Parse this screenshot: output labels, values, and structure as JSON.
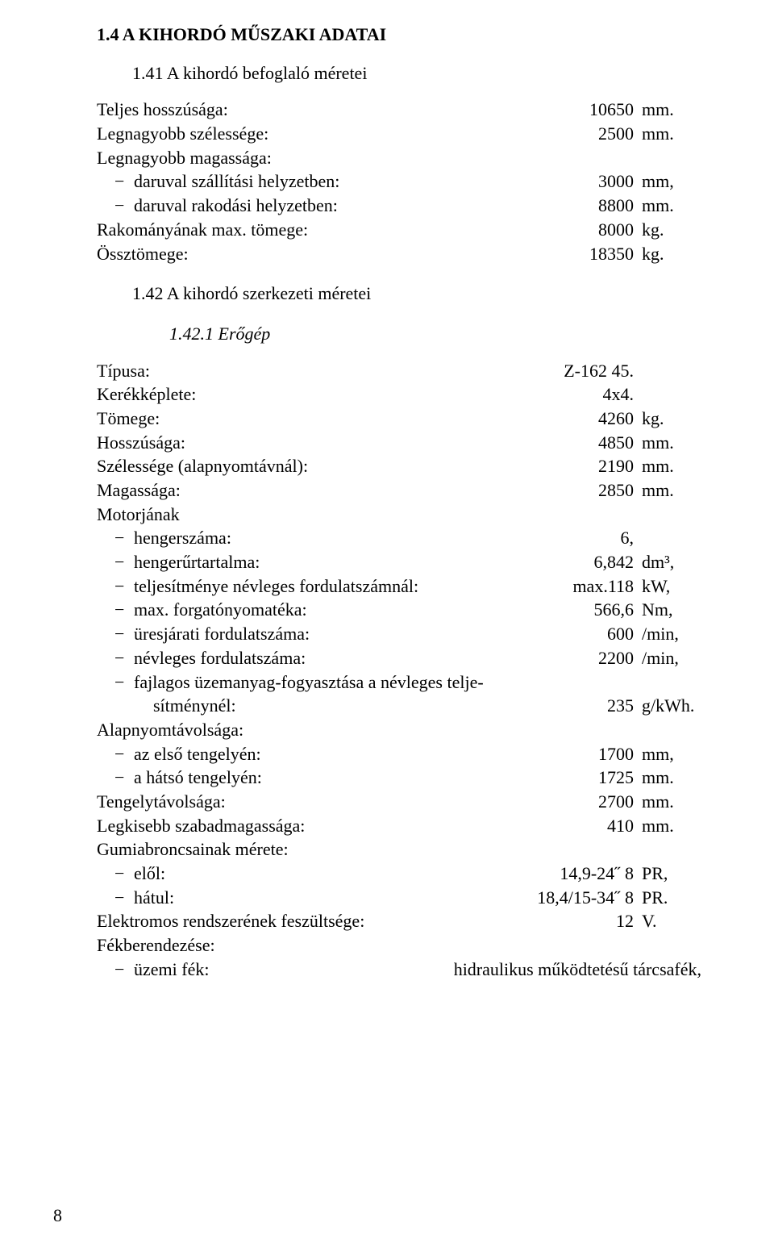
{
  "headings": {
    "h14": "1.4 A KIHORDÓ MŰSZAKI ADATAI",
    "h141": "1.41 A kihordó befoglaló méretei",
    "h142": "1.42 A kihordó szerkezeti méretei",
    "h1421": "1.42.1 Erőgép"
  },
  "s141": {
    "r1": {
      "label": "Teljes hosszúsága:",
      "val": "10650",
      "unit": "mm."
    },
    "r2": {
      "label": "Legnagyobb szélessége:",
      "val": "2500",
      "unit": "mm."
    },
    "r3": {
      "label": "Legnagyobb magassága:"
    },
    "r3a": {
      "label": "daruval szállítási helyzetben:",
      "val": "3000",
      "unit": "mm,"
    },
    "r3b": {
      "label": "daruval rakodási helyzetben:",
      "val": "8800",
      "unit": "mm."
    },
    "r4": {
      "label": "Rakományának max. tömege:",
      "val": "8000",
      "unit": "kg."
    },
    "r5": {
      "label": "Össztömege:",
      "val": "18350",
      "unit": "kg."
    }
  },
  "s1421": {
    "r1": {
      "label": "Típusa:",
      "val": "Z-162 45."
    },
    "r2": {
      "label": "Kerékképlete:",
      "val": "4x4."
    },
    "r3": {
      "label": "Tömege:",
      "val": "4260",
      "unit": "kg."
    },
    "r4": {
      "label": "Hosszúsága:",
      "val": "4850",
      "unit": "mm."
    },
    "r5": {
      "label": "Szélessége (alapnyomtávnál):",
      "val": "2190",
      "unit": "mm."
    },
    "r6": {
      "label": "Magassága:",
      "val": "2850",
      "unit": "mm."
    },
    "r7": {
      "label": "Motorjának"
    },
    "r7a": {
      "label": "hengerszáma:",
      "val": "6,"
    },
    "r7b": {
      "label": "hengerűrtartalma:",
      "val": "6,842",
      "unit": "dm³,"
    },
    "r7c": {
      "label": "teljesítménye névleges fordulatszámnál:",
      "val": "max.118",
      "unit": "kW,"
    },
    "r7d": {
      "label": "max. forgatónyomatéka:",
      "val": "566,6",
      "unit": "Nm,"
    },
    "r7e": {
      "label": "üresjárati fordulatszáma:",
      "val": "600",
      "unit": "/min,"
    },
    "r7f": {
      "label": "névleges fordulatszáma:",
      "val": "2200",
      "unit": "/min,"
    },
    "r7g1": {
      "label": "fajlagos üzemanyag-fogyasztása a névleges telje-"
    },
    "r7g2": {
      "label": "sítménynél:",
      "val": "235",
      "unit": "g/kWh."
    },
    "r8": {
      "label": "Alapnyomtávolsága:"
    },
    "r8a": {
      "label": "az első tengelyén:",
      "val": "1700",
      "unit": "mm,"
    },
    "r8b": {
      "label": "a hátsó tengelyén:",
      "val": "1725",
      "unit": "mm."
    },
    "r9": {
      "label": "Tengelytávolsága:",
      "val": "2700",
      "unit": "mm."
    },
    "r10": {
      "label": "Legkisebb szabadmagassága:",
      "val": "410",
      "unit": "mm."
    },
    "r11": {
      "label": "Gumiabroncsainak mérete:"
    },
    "r11a": {
      "label": "elől:",
      "val": "14,9-24˝ 8",
      "unit": "PR,"
    },
    "r11b": {
      "label": "hátul:",
      "val": "18,4/15-34˝ 8",
      "unit": "PR."
    },
    "r12": {
      "label": "Elektromos rendszerének feszültsége:",
      "val": "12",
      "unit": "V."
    },
    "r13": {
      "label": "Fékberendezése:"
    },
    "r13a": {
      "label": "üzemi fék:",
      "val": "hidraulikus működtetésű tárcsafék,"
    }
  },
  "pageNumber": "8"
}
